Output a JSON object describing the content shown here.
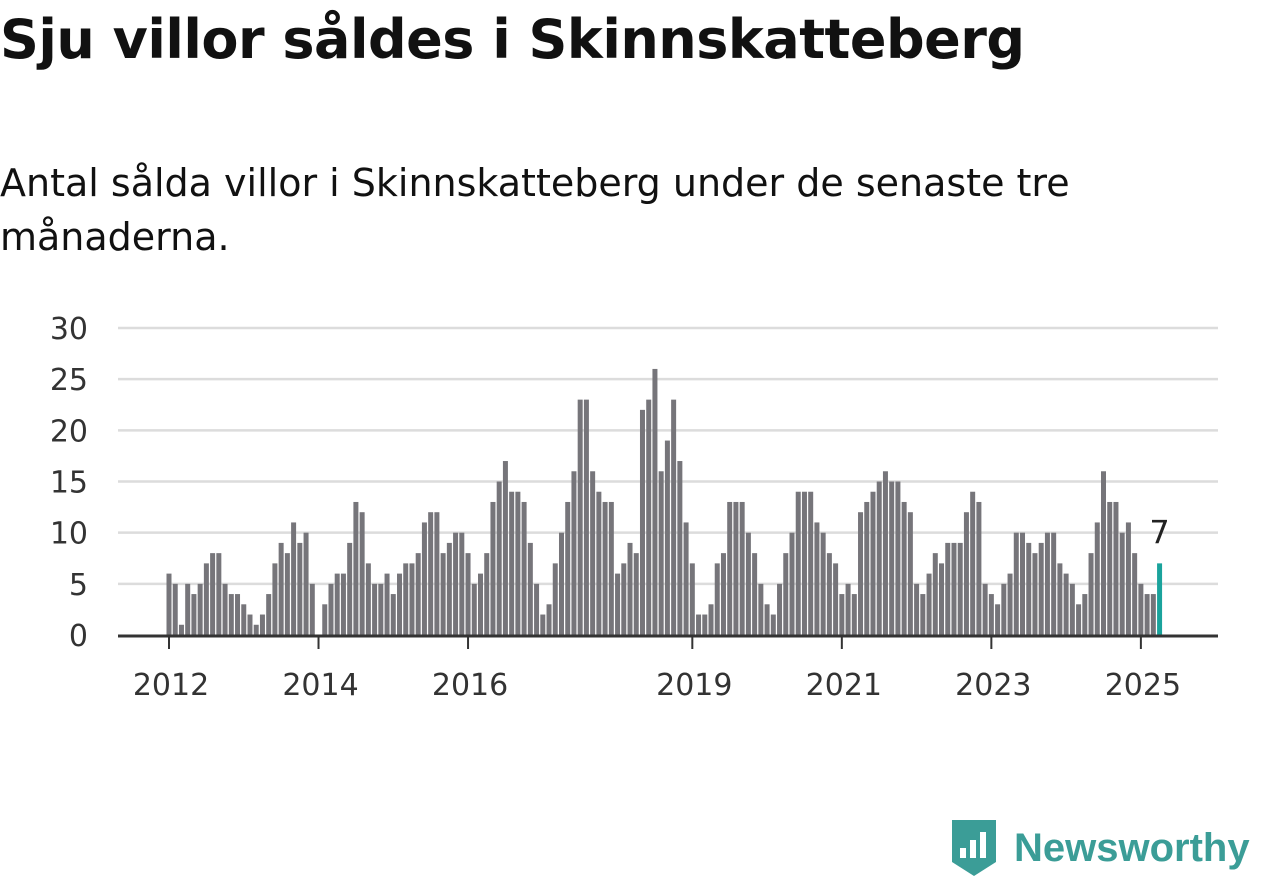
{
  "title": "Sju villor såldes i Skinnskatteberg",
  "subtitle": "Antal sålda villor i Skinnskatteberg under de senaste tre månaderna.",
  "brand": {
    "name": "Newsworthy",
    "icon": "newsworthy-logo-icon",
    "color": "#3b9d97"
  },
  "chart_data": {
    "type": "bar",
    "title": "",
    "xlabel": "",
    "ylabel": "",
    "ylim": [
      0,
      30
    ],
    "yticks": [
      0,
      5,
      10,
      15,
      20,
      25,
      30
    ],
    "grid": true,
    "legend": "none",
    "bar_color": "#76757a",
    "highlight_color": "#1aa39c",
    "x_start": "2012-01",
    "frequency": "monthly",
    "xtick_labels": [
      "2012",
      "2014",
      "2016",
      "2019",
      "2021",
      "2023",
      "2025"
    ],
    "xtick_positions": [
      "2012-01",
      "2014-01",
      "2016-01",
      "2019-01",
      "2021-01",
      "2023-01",
      "2025-01"
    ],
    "values": [
      6,
      5,
      1,
      5,
      4,
      5,
      7,
      8,
      8,
      5,
      4,
      4,
      3,
      2,
      1,
      2,
      4,
      7,
      9,
      8,
      11,
      9,
      10,
      5,
      0,
      3,
      5,
      6,
      6,
      9,
      13,
      12,
      7,
      5,
      5,
      6,
      4,
      6,
      7,
      7,
      8,
      11,
      12,
      12,
      8,
      9,
      10,
      10,
      8,
      5,
      6,
      8,
      13,
      15,
      17,
      14,
      14,
      13,
      9,
      5,
      2,
      3,
      7,
      10,
      13,
      16,
      23,
      23,
      16,
      14,
      13,
      13,
      6,
      7,
      9,
      8,
      22,
      23,
      26,
      16,
      19,
      23,
      17,
      11,
      7,
      2,
      2,
      3,
      7,
      8,
      13,
      13,
      13,
      10,
      8,
      5,
      3,
      2,
      5,
      8,
      10,
      14,
      14,
      14,
      11,
      10,
      8,
      7,
      4,
      5,
      4,
      12,
      13,
      14,
      15,
      16,
      15,
      15,
      13,
      12,
      5,
      4,
      6,
      8,
      7,
      9,
      9,
      9,
      12,
      14,
      13,
      5,
      4,
      3,
      5,
      6,
      10,
      10,
      9,
      8,
      9,
      10,
      10,
      7,
      6,
      5,
      3,
      4,
      8,
      11,
      16,
      13,
      13,
      10,
      11,
      8,
      5,
      4,
      4,
      7
    ],
    "annotation": {
      "label": "7",
      "index": "last"
    }
  }
}
